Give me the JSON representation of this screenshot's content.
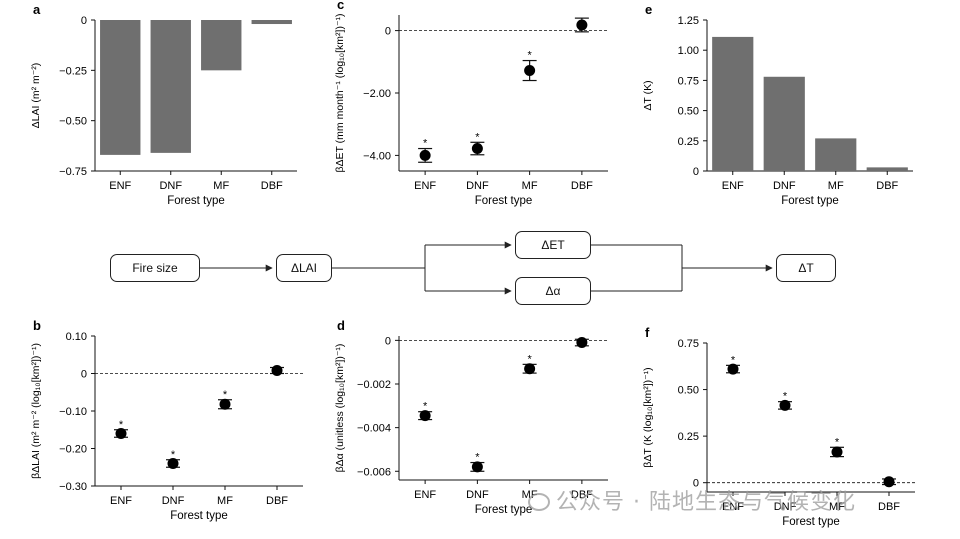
{
  "flow": {
    "fire_size": "Fire size",
    "dlai": "ΔLAI",
    "det": "ΔET",
    "dalpha": "Δα",
    "dt": "ΔT"
  },
  "watermark": "公众号 · 陆地生态与气候变化",
  "chart_data": [
    {
      "id": "a",
      "panel_label": "a",
      "type": "bar",
      "categories": [
        "ENF",
        "DNF",
        "MF",
        "DBF"
      ],
      "values": [
        -0.67,
        -0.66,
        -0.25,
        -0.02
      ],
      "xlabel": "Forest type",
      "ylabel": "ΔLAI (m² m⁻²)",
      "ylim": [
        -0.75,
        0
      ],
      "yticks": [
        0,
        -0.25,
        -0.5,
        -0.75
      ],
      "ytick_labels": [
        "0",
        "−0.25",
        "−0.50",
        "−0.75"
      ],
      "grid": false,
      "color": "#6f6f6f"
    },
    {
      "id": "b",
      "panel_label": "b",
      "type": "scatter",
      "categories": [
        "ENF",
        "DNF",
        "MF",
        "DBF"
      ],
      "values": [
        -0.16,
        -0.24,
        -0.082,
        0.008
      ],
      "errors": [
        0.01,
        0.01,
        0.012,
        0.008
      ],
      "significant": [
        true,
        true,
        true,
        false
      ],
      "xlabel": "Forest type",
      "ylabel": "βΔLAI (m² m⁻² (log₁₀[km²])⁻¹)",
      "ylim": [
        -0.3,
        0.1
      ],
      "yticks": [
        0.1,
        0,
        -0.1,
        -0.2,
        -0.3
      ],
      "ytick_labels": [
        "0.10",
        "0",
        "−0.10",
        "−0.20",
        "−0.30"
      ],
      "zero_line": true,
      "grid": false
    },
    {
      "id": "c",
      "panel_label": "c",
      "type": "scatter",
      "categories": [
        "ENF",
        "DNF",
        "MF",
        "DBF"
      ],
      "values": [
        -4.0,
        -3.78,
        -1.28,
        0.18
      ],
      "errors": [
        0.22,
        0.2,
        0.32,
        0.22
      ],
      "significant": [
        true,
        true,
        true,
        false
      ],
      "xlabel": "Forest type",
      "ylabel": "βΔET (mm month⁻¹ (log₁₀[km²])⁻¹)",
      "ylim": [
        -4.5,
        0.5
      ],
      "yticks": [
        0,
        -2,
        -4
      ],
      "ytick_labels": [
        "0",
        "−2.00",
        "−4.00"
      ],
      "zero_line": true,
      "grid": false
    },
    {
      "id": "d",
      "panel_label": "d",
      "type": "scatter",
      "categories": [
        "ENF",
        "DNF",
        "MF",
        "DBF"
      ],
      "values": [
        -0.00345,
        -0.0058,
        -0.0013,
        -0.0001
      ],
      "errors": [
        0.00018,
        0.0002,
        0.0002,
        0.00015
      ],
      "significant": [
        true,
        true,
        true,
        false
      ],
      "xlabel": "Forest type",
      "ylabel": "βΔα (unitless (log₁₀[km²])⁻¹)",
      "ylim": [
        -0.0064,
        0.0002
      ],
      "yticks": [
        0,
        -0.002,
        -0.004,
        -0.006
      ],
      "ytick_labels": [
        "0",
        "−0.002",
        "−0.004",
        "−0.006"
      ],
      "zero_line": true,
      "grid": false
    },
    {
      "id": "e",
      "panel_label": "e",
      "type": "bar",
      "categories": [
        "ENF",
        "DNF",
        "MF",
        "DBF"
      ],
      "values": [
        1.11,
        0.78,
        0.27,
        0.03
      ],
      "xlabel": "Forest type",
      "ylabel": "ΔT (K)",
      "ylim": [
        0,
        1.25
      ],
      "yticks": [
        0,
        0.25,
        0.5,
        0.75,
        1.0,
        1.25
      ],
      "ytick_labels": [
        "0",
        "0.25",
        "0.50",
        "0.75",
        "1.00",
        "1.25"
      ],
      "grid": false,
      "color": "#6f6f6f"
    },
    {
      "id": "f",
      "panel_label": "f",
      "type": "scatter",
      "categories": [
        "ENF",
        "DNF",
        "MF",
        "DBF"
      ],
      "values": [
        0.61,
        0.415,
        0.165,
        0.005
      ],
      "errors": [
        0.02,
        0.02,
        0.025,
        0.015
      ],
      "significant": [
        true,
        true,
        true,
        false
      ],
      "xlabel": "Forest type",
      "ylabel": "βΔT (K (log₁₀[km²])⁻¹)",
      "ylim": [
        -0.05,
        0.75
      ],
      "yticks": [
        0.75,
        0.5,
        0.25,
        0
      ],
      "ytick_labels": [
        "0.75",
        "0.50",
        "0.25",
        "0"
      ],
      "zero_line": true,
      "grid": false
    }
  ]
}
